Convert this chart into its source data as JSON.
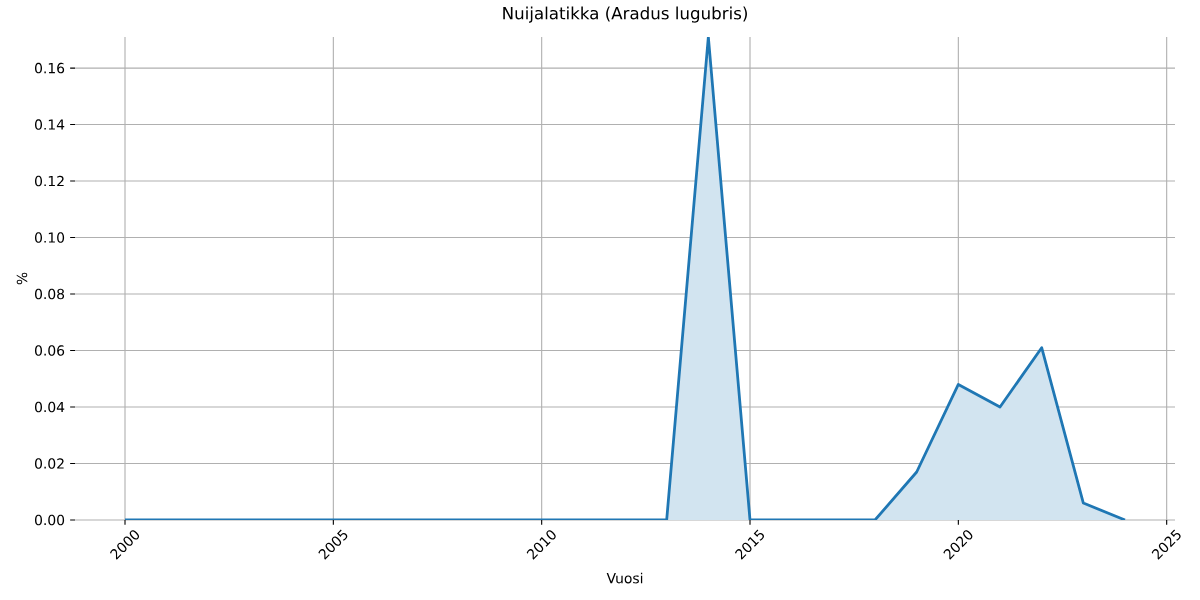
{
  "chart_data": {
    "type": "area",
    "title": "Nuijalatikka (Aradus lugubris)",
    "xlabel": "Vuosi",
    "ylabel": "%",
    "x": [
      2000,
      2001,
      2002,
      2003,
      2004,
      2005,
      2006,
      2007,
      2008,
      2009,
      2010,
      2011,
      2012,
      2013,
      2014,
      2015,
      2016,
      2017,
      2018,
      2019,
      2020,
      2021,
      2022,
      2023,
      2024
    ],
    "series": [
      {
        "color": "#1f77b4",
        "values": [
          0,
          0,
          0,
          0,
          0,
          0,
          0,
          0,
          0,
          0,
          0,
          0,
          0,
          0,
          0.171,
          0,
          0,
          0,
          0,
          0.017,
          0.048,
          0.04,
          0.061,
          0.006,
          0
        ]
      }
    ],
    "xlim": [
      1998.8,
      2025.2
    ],
    "ylim": [
      0,
      0.171
    ],
    "xticks": [
      2000,
      2005,
      2010,
      2015,
      2020,
      2025
    ],
    "yticks": [
      {
        "value": 0,
        "label": "0.00"
      },
      {
        "value": 0.02,
        "label": "0.02"
      },
      {
        "value": 0.04,
        "label": "0.04"
      },
      {
        "value": 0.06,
        "label": "0.06"
      },
      {
        "value": 0.08,
        "label": "0.08"
      },
      {
        "value": 0.1,
        "label": "0.10"
      },
      {
        "value": 0.12,
        "label": "0.12"
      },
      {
        "value": 0.14,
        "label": "0.14"
      },
      {
        "value": 0.16,
        "label": "0.16"
      }
    ],
    "grid": true,
    "line_style": "solid"
  }
}
